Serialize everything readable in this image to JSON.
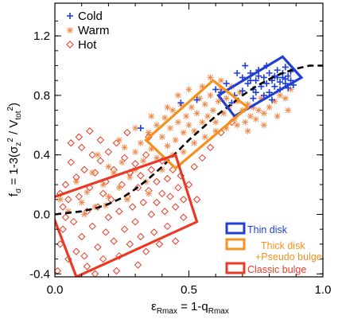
{
  "chart_data": {
    "type": "scatter",
    "xlabel_main": "ε",
    "xlabel_sub": "Rmax",
    "xlabel_rest": " = 1-q",
    "xlabel_sub2": "Rmax",
    "ylabel": "f_σ = 1-3(σ_z² / V_tot²)",
    "ylabel_main": "f",
    "ylabel_sub": "σ",
    "ylabel_rest": " = 1-3(σ",
    "ylabel_z": "z",
    "ylabel_sq": "2",
    "ylabel_frac": " / V",
    "ylabel_tot": "tot",
    "ylabel_close": ")",
    "xlim": [
      0.0,
      1.0
    ],
    "ylim": [
      -0.42,
      1.42
    ],
    "x_ticks": [
      0.0,
      0.5,
      1.0
    ],
    "x_tick_labels": [
      "0.0",
      "0.5",
      "1.0"
    ],
    "y_ticks": [
      -0.4,
      0.0,
      0.4,
      0.8,
      1.2
    ],
    "y_tick_labels": [
      "-0.4",
      "0.0",
      "0.4",
      "0.8",
      "1.2"
    ],
    "legend": [
      {
        "name": "Cold",
        "marker": "plus",
        "color": "#1f3fd6"
      },
      {
        "name": "Warm",
        "marker": "asterisk",
        "color": "#f08a4b"
      },
      {
        "name": "Hot",
        "marker": "diamond",
        "color": "#ea3a26"
      }
    ],
    "series": [
      {
        "name": "Cold",
        "color": "#1f3fd6",
        "points": [
          [
            0.7,
            0.92
          ],
          [
            0.72,
            0.88
          ],
          [
            0.73,
            0.95
          ],
          [
            0.74,
            0.84
          ],
          [
            0.75,
            0.9
          ],
          [
            0.76,
            0.97
          ],
          [
            0.77,
            0.86
          ],
          [
            0.78,
            0.92
          ],
          [
            0.79,
            0.88
          ],
          [
            0.8,
            0.95
          ],
          [
            0.8,
            0.82
          ],
          [
            0.81,
            0.9
          ],
          [
            0.82,
            0.93
          ],
          [
            0.82,
            0.86
          ],
          [
            0.83,
            0.97
          ],
          [
            0.84,
            0.89
          ],
          [
            0.84,
            0.84
          ],
          [
            0.85,
            0.92
          ],
          [
            0.85,
            0.95
          ],
          [
            0.86,
            0.88
          ],
          [
            0.86,
            0.91
          ],
          [
            0.87,
            0.85
          ],
          [
            0.87,
            0.93
          ],
          [
            0.88,
            0.9
          ],
          [
            0.88,
            0.96
          ],
          [
            0.89,
            0.87
          ],
          [
            0.78,
            0.8
          ],
          [
            0.74,
            0.78
          ],
          [
            0.7,
            0.83
          ],
          [
            0.67,
            0.8
          ],
          [
            0.64,
            0.88
          ],
          [
            0.66,
            0.75
          ],
          [
            0.62,
            0.82
          ],
          [
            0.6,
            0.84
          ],
          [
            0.68,
            0.95
          ],
          [
            0.71,
            1.0
          ],
          [
            0.75,
            0.82
          ],
          [
            0.79,
            1.0
          ],
          [
            0.83,
            0.92
          ],
          [
            0.86,
            0.99
          ],
          [
            0.53,
            0.77
          ],
          [
            0.47,
            0.75
          ],
          [
            0.32,
            0.58
          ],
          [
            0.81,
            0.77
          ],
          [
            0.76,
            0.93
          ],
          [
            0.73,
            0.9
          ]
        ]
      },
      {
        "name": "Warm",
        "color": "#f08a4b",
        "points": [
          [
            0.05,
            0.02
          ],
          [
            0.1,
            0.08
          ],
          [
            0.12,
            0.15
          ],
          [
            0.15,
            0.05
          ],
          [
            0.18,
            0.2
          ],
          [
            0.2,
            0.12
          ],
          [
            0.22,
            0.28
          ],
          [
            0.24,
            0.18
          ],
          [
            0.25,
            0.35
          ],
          [
            0.28,
            0.25
          ],
          [
            0.3,
            0.42
          ],
          [
            0.3,
            0.3
          ],
          [
            0.32,
            0.48
          ],
          [
            0.33,
            0.36
          ],
          [
            0.35,
            0.55
          ],
          [
            0.36,
            0.44
          ],
          [
            0.38,
            0.6
          ],
          [
            0.38,
            0.38
          ],
          [
            0.4,
            0.52
          ],
          [
            0.41,
            0.65
          ],
          [
            0.42,
            0.46
          ],
          [
            0.43,
            0.58
          ],
          [
            0.44,
            0.7
          ],
          [
            0.45,
            0.5
          ],
          [
            0.46,
            0.62
          ],
          [
            0.47,
            0.74
          ],
          [
            0.48,
            0.55
          ],
          [
            0.49,
            0.66
          ],
          [
            0.5,
            0.6
          ],
          [
            0.51,
            0.72
          ],
          [
            0.52,
            0.56
          ],
          [
            0.53,
            0.68
          ],
          [
            0.54,
            0.78
          ],
          [
            0.55,
            0.62
          ],
          [
            0.56,
            0.74
          ],
          [
            0.57,
            0.66
          ],
          [
            0.58,
            0.8
          ],
          [
            0.59,
            0.7
          ],
          [
            0.6,
            0.62
          ],
          [
            0.61,
            0.76
          ],
          [
            0.62,
            0.84
          ],
          [
            0.63,
            0.68
          ],
          [
            0.64,
            0.78
          ],
          [
            0.65,
            0.72
          ],
          [
            0.66,
            0.86
          ],
          [
            0.67,
            0.64
          ],
          [
            0.68,
            0.76
          ],
          [
            0.69,
            0.82
          ],
          [
            0.7,
            0.7
          ],
          [
            0.71,
            0.62
          ],
          [
            0.72,
            0.74
          ],
          [
            0.73,
            0.66
          ],
          [
            0.74,
            0.72
          ],
          [
            0.75,
            0.64
          ],
          [
            0.76,
            0.7
          ],
          [
            0.77,
            0.78
          ],
          [
            0.78,
            0.68
          ],
          [
            0.8,
            0.72
          ],
          [
            0.82,
            0.76
          ],
          [
            0.84,
            0.8
          ],
          [
            0.86,
            0.78
          ],
          [
            0.88,
            0.84
          ],
          [
            0.2,
            0.32
          ],
          [
            0.26,
            0.45
          ],
          [
            0.34,
            0.22
          ],
          [
            0.4,
            0.3
          ],
          [
            0.44,
            0.4
          ],
          [
            0.48,
            0.42
          ],
          [
            0.52,
            0.48
          ],
          [
            0.56,
            0.52
          ],
          [
            0.6,
            0.56
          ],
          [
            0.64,
            0.58
          ],
          [
            0.68,
            0.6
          ],
          [
            0.14,
            0.28
          ],
          [
            0.08,
            0.22
          ],
          [
            0.02,
            0.1
          ],
          [
            0.16,
            0.4
          ],
          [
            0.24,
            0.5
          ],
          [
            0.3,
            0.58
          ],
          [
            0.36,
            0.66
          ],
          [
            0.42,
            0.72
          ],
          [
            0.46,
            0.8
          ],
          [
            0.5,
            0.84
          ],
          [
            0.55,
            0.86
          ],
          [
            0.62,
            0.9
          ],
          [
            0.58,
            0.92
          ],
          [
            0.72,
            0.56
          ],
          [
            0.78,
            0.6
          ],
          [
            0.83,
            0.66
          ],
          [
            0.87,
            0.7
          ],
          [
            0.11,
            0.0
          ],
          [
            0.19,
            0.06
          ],
          [
            0.27,
            0.1
          ],
          [
            0.35,
            0.14
          ]
        ]
      },
      {
        "name": "Hot",
        "color": "#ea3a26",
        "points": [
          [
            0.01,
            -0.38
          ],
          [
            0.02,
            -0.2
          ],
          [
            0.03,
            0.05
          ],
          [
            0.03,
            -0.1
          ],
          [
            0.04,
            0.2
          ],
          [
            0.05,
            -0.3
          ],
          [
            0.05,
            0.1
          ],
          [
            0.06,
            0.35
          ],
          [
            0.07,
            -0.05
          ],
          [
            0.08,
            0.25
          ],
          [
            0.08,
            -0.25
          ],
          [
            0.09,
            0.12
          ],
          [
            0.1,
            0.45
          ],
          [
            0.1,
            -0.15
          ],
          [
            0.11,
            0.3
          ],
          [
            0.12,
            0.02
          ],
          [
            0.12,
            -0.35
          ],
          [
            0.13,
            0.18
          ],
          [
            0.14,
            0.4
          ],
          [
            0.14,
            -0.08
          ],
          [
            0.15,
            0.28
          ],
          [
            0.16,
            0.05
          ],
          [
            0.16,
            -0.22
          ],
          [
            0.17,
            0.36
          ],
          [
            0.18,
            0.14
          ],
          [
            0.18,
            -0.3
          ],
          [
            0.19,
            0.22
          ],
          [
            0.2,
            -0.02
          ],
          [
            0.2,
            0.42
          ],
          [
            0.21,
            0.1
          ],
          [
            0.22,
            -0.18
          ],
          [
            0.22,
            0.3
          ],
          [
            0.23,
            0.48
          ],
          [
            0.24,
            0.02
          ],
          [
            0.24,
            -0.28
          ],
          [
            0.25,
            0.2
          ],
          [
            0.26,
            0.38
          ],
          [
            0.26,
            -0.1
          ],
          [
            0.27,
            0.12
          ],
          [
            0.28,
            0.28
          ],
          [
            0.28,
            -0.2
          ],
          [
            0.29,
            0.05
          ],
          [
            0.3,
            0.34
          ],
          [
            0.3,
            -0.05
          ],
          [
            0.31,
            0.18
          ],
          [
            0.32,
            -0.15
          ],
          [
            0.32,
            0.26
          ],
          [
            0.33,
            0.08
          ],
          [
            0.34,
            0.4
          ],
          [
            0.34,
            -0.25
          ],
          [
            0.35,
            0.16
          ],
          [
            0.36,
            0.0
          ],
          [
            0.36,
            0.3
          ],
          [
            0.37,
            -0.12
          ],
          [
            0.38,
            0.22
          ],
          [
            0.38,
            0.08
          ],
          [
            0.39,
            -0.2
          ],
          [
            0.4,
            0.14
          ],
          [
            0.4,
            0.36
          ],
          [
            0.41,
            0.02
          ],
          [
            0.42,
            0.24
          ],
          [
            0.42,
            -0.08
          ],
          [
            0.43,
            0.12
          ],
          [
            0.44,
            0.3
          ],
          [
            0.45,
            0.05
          ],
          [
            0.46,
            0.18
          ],
          [
            0.47,
            0.26
          ],
          [
            0.48,
            0.1
          ],
          [
            0.5,
            0.2
          ],
          [
            0.52,
            0.32
          ],
          [
            0.55,
            0.38
          ],
          [
            0.58,
            0.45
          ],
          [
            0.62,
            0.55
          ],
          [
            0.66,
            0.62
          ],
          [
            0.06,
            0.48
          ],
          [
            0.09,
            0.52
          ],
          [
            0.13,
            0.56
          ],
          [
            0.04,
            -0.02
          ],
          [
            0.02,
            0.14
          ],
          [
            0.15,
            -0.4
          ],
          [
            0.23,
            -0.38
          ],
          [
            0.31,
            -0.34
          ],
          [
            0.45,
            -0.18
          ],
          [
            0.48,
            -0.02
          ],
          [
            0.53,
            0.1
          ],
          [
            0.17,
            0.5
          ],
          [
            0.27,
            0.55
          ],
          [
            0.35,
            0.52
          ],
          [
            0.11,
            -0.28
          ],
          [
            0.19,
            -0.12
          ]
        ]
      }
    ],
    "trend_line": [
      [
        0.0,
        0.0
      ],
      [
        0.05,
        0.01
      ],
      [
        0.1,
        0.02
      ],
      [
        0.15,
        0.04
      ],
      [
        0.2,
        0.07
      ],
      [
        0.25,
        0.11
      ],
      [
        0.3,
        0.17
      ],
      [
        0.35,
        0.24
      ],
      [
        0.4,
        0.32
      ],
      [
        0.45,
        0.41
      ],
      [
        0.5,
        0.5
      ],
      [
        0.55,
        0.58
      ],
      [
        0.6,
        0.66
      ],
      [
        0.65,
        0.73
      ],
      [
        0.7,
        0.8
      ],
      [
        0.75,
        0.86
      ],
      [
        0.8,
        0.91
      ],
      [
        0.85,
        0.95
      ],
      [
        0.9,
        0.98
      ],
      [
        0.95,
        1.0
      ],
      [
        1.0,
        1.0
      ]
    ],
    "boxes": [
      {
        "label": "Thin disk",
        "color": "#1f3fd6",
        "corners": [
          [
            0.61,
            0.8
          ],
          [
            0.85,
            1.06
          ],
          [
            0.92,
            0.92
          ],
          [
            0.67,
            0.66
          ]
        ]
      },
      {
        "label": "Thick disk",
        "label2": "+Pseudo bulge",
        "color": "#f5911e",
        "corners": [
          [
            0.34,
            0.5
          ],
          [
            0.59,
            0.9
          ],
          [
            0.72,
            0.72
          ],
          [
            0.45,
            0.31
          ]
        ]
      },
      {
        "label": "Classic bulge",
        "color": "#ea3a26",
        "corners": [
          [
            -0.03,
            0.1
          ],
          [
            0.45,
            0.4
          ],
          [
            0.53,
            -0.05
          ],
          [
            0.08,
            -0.42
          ]
        ]
      }
    ]
  }
}
